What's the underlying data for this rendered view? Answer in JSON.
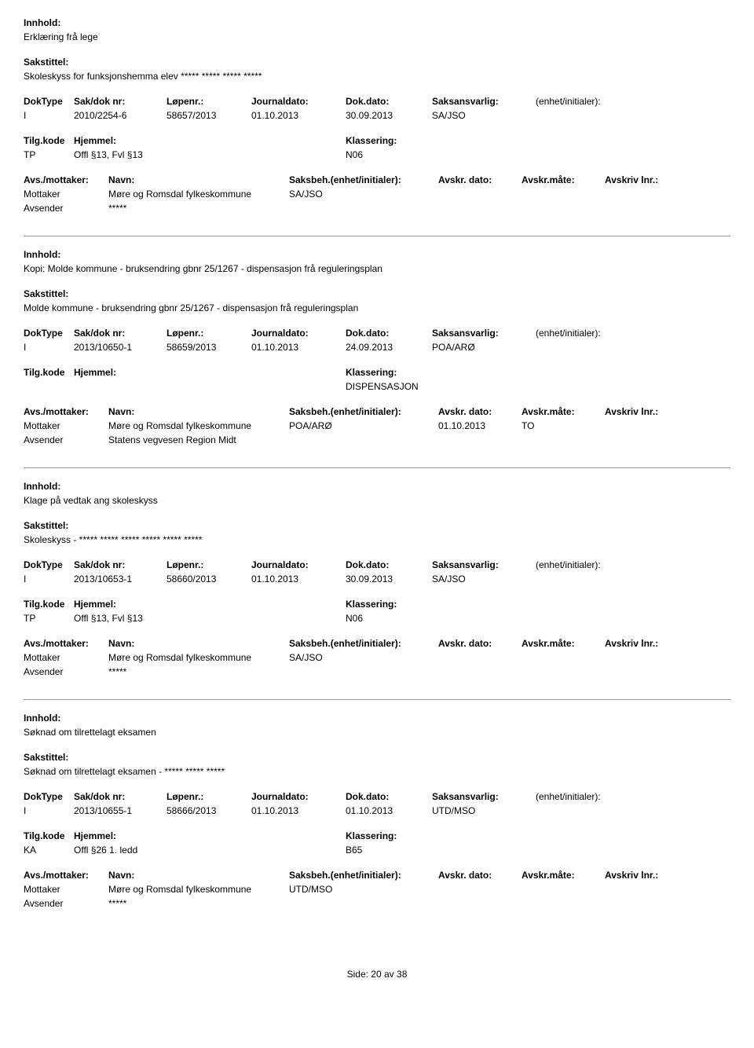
{
  "labels": {
    "innhold": "Innhold:",
    "sakstittel": "Sakstittel:",
    "doktype": "DokType",
    "sakdoknr": "Sak/dok nr:",
    "lopenr": "Løpenr.:",
    "journaldato": "Journaldato:",
    "dokdato": "Dok.dato:",
    "saksansvarlig": "Saksansvarlig:",
    "enhet": "(enhet/initialer):",
    "tilgkode": "Tilg.kode",
    "hjemmel": "Hjemmel:",
    "klassering": "Klassering:",
    "avsmottaker": "Avs./mottaker:",
    "navn": "Navn:",
    "saksbeh": "Saksbeh.(enhet/initialer):",
    "avskrdato": "Avskr. dato:",
    "avskrmate": "Avskr.måte:",
    "avskrivlnr": "Avskriv lnr.:",
    "mottaker": "Mottaker",
    "avsender": "Avsender"
  },
  "footer": {
    "side_label": "Side:",
    "page": "20",
    "av": "av",
    "total": "38"
  },
  "records": [
    {
      "innhold": "Erklæring frå lege",
      "sakstittel": "Skoleskyss for funksjonshemma elev ***** ***** ***** *****",
      "doktype": "I",
      "sakdok": "2010/2254-6",
      "lopenr": "58657/2013",
      "journaldato": "01.10.2013",
      "dokdato": "30.09.2013",
      "saksansvarlig": "SA/JSO",
      "enhet": "",
      "tilgkode": "TP",
      "hjemmel": "Offl §13, Fvl §13",
      "klassering": "N06",
      "mottaker_navn": "Møre og Romsdal fylkeskommune",
      "mottaker_saksbeh": "SA/JSO",
      "avskr_dato": "",
      "avskr_mate": "",
      "avsender_navn": "*****"
    },
    {
      "innhold": "Kopi: Molde kommune - bruksendring gbnr 25/1267 - dispensasjon frå reguleringsplan",
      "sakstittel": "Molde kommune - bruksendring gbnr 25/1267 - dispensasjon frå reguleringsplan",
      "doktype": "I",
      "sakdok": "2013/10650-1",
      "lopenr": "58659/2013",
      "journaldato": "01.10.2013",
      "dokdato": "24.09.2013",
      "saksansvarlig": "POA/ARØ",
      "enhet": "",
      "tilgkode": "",
      "hjemmel": "",
      "klassering": "DISPENSASJON",
      "mottaker_navn": "Møre og Romsdal fylkeskommune",
      "mottaker_saksbeh": "POA/ARØ",
      "avskr_dato": "01.10.2013",
      "avskr_mate": "TO",
      "avsender_navn": "Statens vegvesen Region Midt"
    },
    {
      "innhold": "Klage på vedtak ang skoleskyss",
      "sakstittel": "Skoleskyss - ***** ***** ***** ***** ***** *****",
      "doktype": "I",
      "sakdok": "2013/10653-1",
      "lopenr": "58660/2013",
      "journaldato": "01.10.2013",
      "dokdato": "30.09.2013",
      "saksansvarlig": "SA/JSO",
      "enhet": "",
      "tilgkode": "TP",
      "hjemmel": "Offl §13, Fvl §13",
      "klassering": "N06",
      "mottaker_navn": "Møre og Romsdal fylkeskommune",
      "mottaker_saksbeh": "SA/JSO",
      "avskr_dato": "",
      "avskr_mate": "",
      "avsender_navn": "*****"
    },
    {
      "innhold": "Søknad om tilrettelagt eksamen",
      "sakstittel": "Søknad om tilrettelagt eksamen - ***** ***** *****",
      "doktype": "I",
      "sakdok": "2013/10655-1",
      "lopenr": "58666/2013",
      "journaldato": "01.10.2013",
      "dokdato": "01.10.2013",
      "saksansvarlig": "UTD/MSO",
      "enhet": "",
      "tilgkode": "KA",
      "hjemmel": "Offl §26 1. ledd",
      "klassering": "B65",
      "mottaker_navn": "Møre og Romsdal fylkeskommune",
      "mottaker_saksbeh": "UTD/MSO",
      "avskr_dato": "",
      "avskr_mate": "",
      "avsender_navn": "*****"
    }
  ]
}
